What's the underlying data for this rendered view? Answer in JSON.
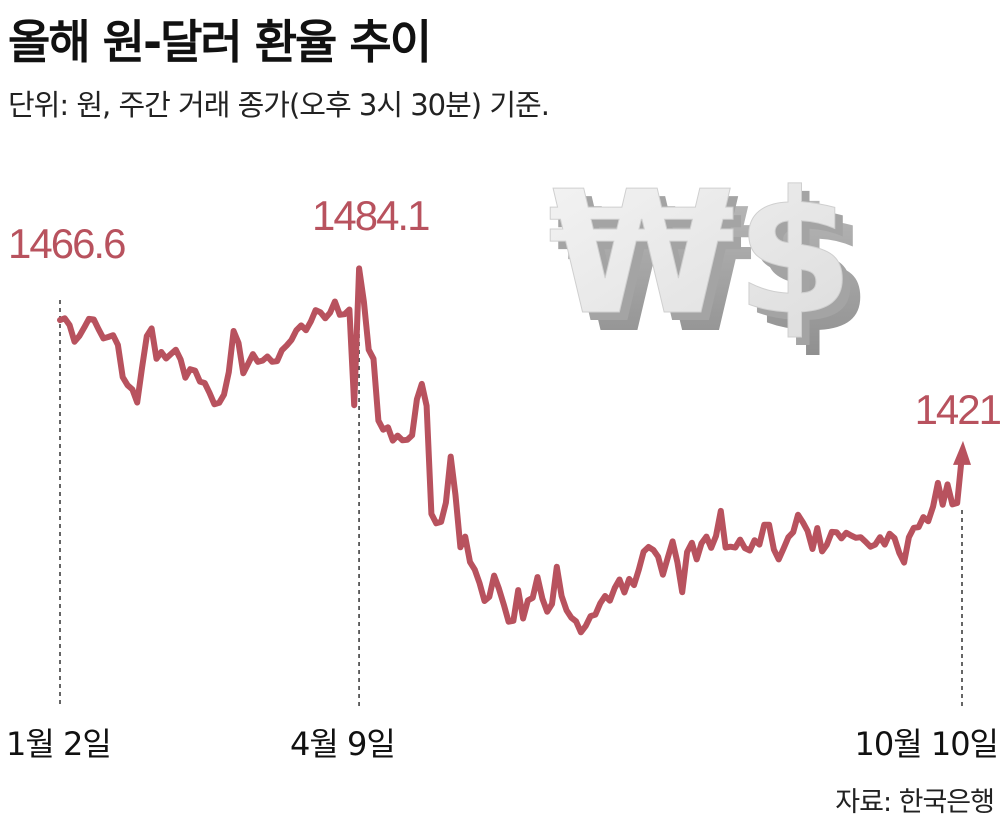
{
  "title": "올해 원-달러 환율 추이",
  "subtitle": "단위: 원, 주간 거래 종가(오후 3시 30분) 기준.",
  "source": "자료: 한국은행",
  "decoration": {
    "icon": "won-dollar-3d-icon",
    "text": "₩$"
  },
  "colors": {
    "line": "#b8525e",
    "label": "#b8525e",
    "guide": "#333333"
  },
  "chart_data": {
    "type": "line",
    "title": "올해 원-달러 환율 추이",
    "ylabel": "원",
    "x_tick_labels": [
      "1월 2일",
      "4월 9일",
      "10월 10일"
    ],
    "ylim": [
      1360,
      1490
    ],
    "grid": false,
    "legend": "none",
    "annotations": [
      {
        "date_index": 0,
        "label": "1466.6",
        "value": 1466.6
      },
      {
        "date_index": 62,
        "label": "1484.1",
        "value": 1484.1
      },
      {
        "date_index": 187,
        "label": "1421",
        "value": 1421
      }
    ],
    "values": [
      1466.6,
      1467.2,
      1464.9,
      1459.3,
      1461.2,
      1464.0,
      1467.0,
      1466.8,
      1463.5,
      1460.4,
      1460.9,
      1461.5,
      1458.2,
      1447.3,
      1444.6,
      1443.1,
      1438.7,
      1450.4,
      1461.2,
      1463.8,
      1453.5,
      1455.8,
      1453.6,
      1455.1,
      1456.6,
      1453.3,
      1447.1,
      1450.0,
      1449.5,
      1445.8,
      1445.3,
      1442.0,
      1438.1,
      1438.6,
      1441.4,
      1449.0,
      1462.9,
      1458.9,
      1448.6,
      1451.8,
      1455.1,
      1452.5,
      1452.9,
      1454.3,
      1452.5,
      1452.7,
      1456.4,
      1458.0,
      1459.9,
      1463.2,
      1464.8,
      1463.2,
      1466.1,
      1470.0,
      1469.2,
      1467.2,
      1469.1,
      1472.9,
      1468.4,
      1468.6,
      1470.2,
      1437.8,
      1484.1,
      1472.8,
      1456.6,
      1453.5,
      1432.6,
      1429.5,
      1430.3,
      1425.8,
      1427.5,
      1425.9,
      1426.1,
      1427.6,
      1439.8,
      1445.0,
      1437.6,
      1401.0,
      1397.8,
      1398.3,
      1404.8,
      1420.4,
      1407.3,
      1389.7,
      1393.3,
      1384.7,
      1382.1,
      1377.5,
      1371.5,
      1372.9,
      1380.1,
      1375.7,
      1370.3,
      1364.5,
      1364.8,
      1375.2,
      1365.6,
      1371.7,
      1372.6,
      1379.6,
      1372.3,
      1367.9,
      1370.5,
      1383.1,
      1373.2,
      1368.4,
      1365.9,
      1364.6,
      1360.9,
      1363.1,
      1366.4,
      1366.9,
      1370.7,
      1373.2,
      1371.6,
      1375.9,
      1378.8,
      1374.4,
      1379.0,
      1376.9,
      1382.1,
      1388.2,
      1389.8,
      1388.8,
      1386.5,
      1380.4,
      1386.2,
      1391.7,
      1384.6,
      1374.5,
      1388.1,
      1391.2,
      1385.6,
      1391.0,
      1393.3,
      1389.5,
      1393.5,
      1402.0,
      1389.6,
      1389.9,
      1389.6,
      1392.3,
      1389.4,
      1388.6,
      1392.1,
      1390.6,
      1397.3,
      1397.3,
      1388.9,
      1385.6,
      1389.2,
      1393.1,
      1394.8,
      1400.7,
      1398.2,
      1395.2,
      1389.1,
      1396.2,
      1388.3,
      1390.6,
      1394.9,
      1394.8,
      1392.7,
      1394.6,
      1393.7,
      1392.9,
      1393.1,
      1391.6,
      1389.9,
      1390.6,
      1393.1,
      1390.6,
      1394.3,
      1392.8,
      1387.8,
      1384.5,
      1393.1,
      1396.3,
      1396.5,
      1399.9,
      1398.5,
      1403.5,
      1411.5,
      1404.1,
      1411.0,
      1404.2,
      1404.7,
      1421.0
    ]
  }
}
